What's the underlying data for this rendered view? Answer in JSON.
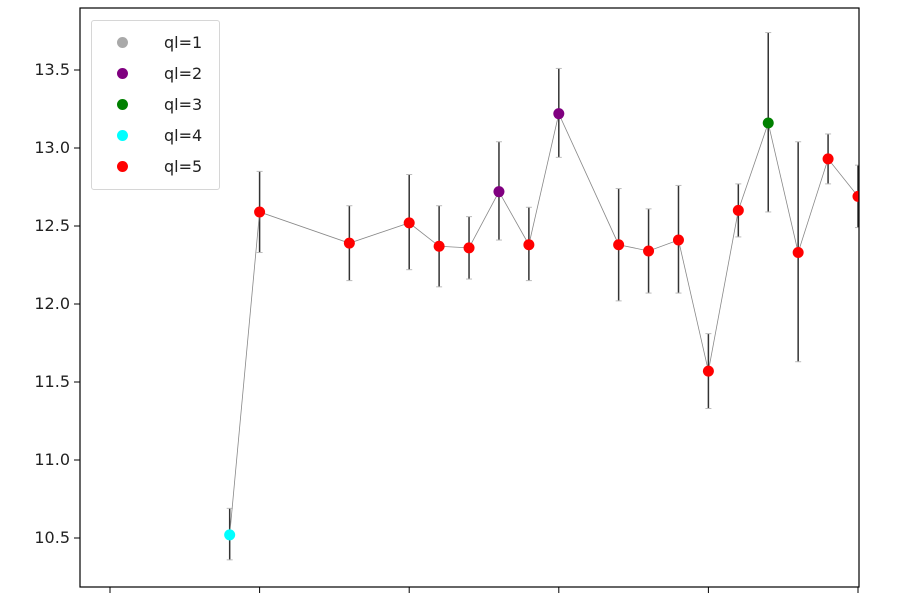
{
  "chart_data": {
    "type": "scatter",
    "title": "",
    "xlabel": "",
    "ylabel": "",
    "xlim": [
      -1,
      25
    ],
    "ylim": [
      10.19,
      13.9
    ],
    "x_ticks": [
      0,
      5,
      10,
      15,
      20,
      25
    ],
    "x_tick_labels_visible": false,
    "y_ticks": [
      10.5,
      11.0,
      11.5,
      12.0,
      12.5,
      13.0,
      13.5
    ],
    "y_tick_labels": [
      "10.5",
      "11.0",
      "11.5",
      "12.0",
      "12.5",
      "13.0",
      "13.5"
    ],
    "grid": false,
    "legend_position": "upper left",
    "connecting_line_color": "#888888",
    "errorbar_color": "#333333",
    "legend": [
      {
        "label": "ql=1",
        "color": "#a9a9a9"
      },
      {
        "label": "ql=2",
        "color": "#800080"
      },
      {
        "label": "ql=3",
        "color": "#008000"
      },
      {
        "label": "ql=4",
        "color": "#00ffff"
      },
      {
        "label": "ql=5",
        "color": "#ff0000"
      }
    ],
    "points": [
      {
        "x": 4,
        "y": 10.52,
        "err_low": 10.36,
        "err_high": 10.69,
        "ql": 4
      },
      {
        "x": 5,
        "y": 12.59,
        "err_low": 12.33,
        "err_high": 12.85,
        "ql": 5
      },
      {
        "x": 8,
        "y": 12.39,
        "err_low": 12.15,
        "err_high": 12.63,
        "ql": 5
      },
      {
        "x": 10,
        "y": 12.52,
        "err_low": 12.22,
        "err_high": 12.83,
        "ql": 5
      },
      {
        "x": 11,
        "y": 12.37,
        "err_low": 12.11,
        "err_high": 12.63,
        "ql": 5
      },
      {
        "x": 12,
        "y": 12.36,
        "err_low": 12.16,
        "err_high": 12.56,
        "ql": 5
      },
      {
        "x": 13,
        "y": 12.72,
        "err_low": 12.41,
        "err_high": 13.04,
        "ql": 2
      },
      {
        "x": 14,
        "y": 12.38,
        "err_low": 12.15,
        "err_high": 12.62,
        "ql": 5
      },
      {
        "x": 15,
        "y": 13.22,
        "err_low": 12.94,
        "err_high": 13.51,
        "ql": 2
      },
      {
        "x": 17,
        "y": 12.38,
        "err_low": 12.02,
        "err_high": 12.74,
        "ql": 5
      },
      {
        "x": 18,
        "y": 12.34,
        "err_low": 12.07,
        "err_high": 12.61,
        "ql": 5
      },
      {
        "x": 19,
        "y": 12.41,
        "err_low": 12.07,
        "err_high": 12.76,
        "ql": 5
      },
      {
        "x": 20,
        "y": 11.57,
        "err_low": 11.33,
        "err_high": 11.81,
        "ql": 5
      },
      {
        "x": 21,
        "y": 12.6,
        "err_low": 12.43,
        "err_high": 12.77,
        "ql": 5
      },
      {
        "x": 22,
        "y": 13.16,
        "err_low": 12.59,
        "err_high": 13.74,
        "ql": 3
      },
      {
        "x": 23,
        "y": 12.33,
        "err_low": 11.63,
        "err_high": 13.04,
        "ql": 5
      },
      {
        "x": 24,
        "y": 12.93,
        "err_low": 12.77,
        "err_high": 13.09,
        "ql": 5
      },
      {
        "x": 25,
        "y": 12.69,
        "err_low": 12.49,
        "err_high": 12.89,
        "ql": 5
      }
    ]
  }
}
